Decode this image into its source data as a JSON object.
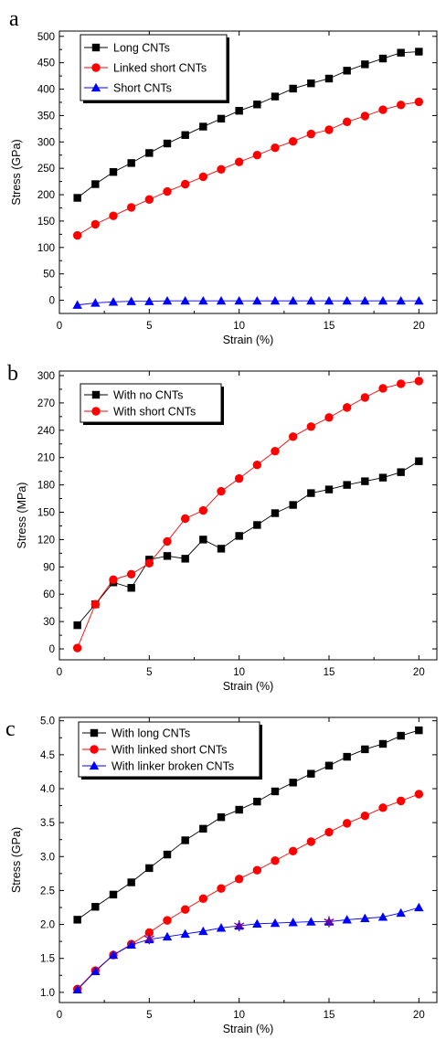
{
  "chart_data": [
    {
      "panel": "a",
      "type": "line",
      "xlabel": "Strain (%)",
      "ylabel": "Stress (GPa)",
      "xlim": [
        0,
        21
      ],
      "ylim": [
        -25,
        510
      ],
      "xticks": [
        0,
        5,
        10,
        15,
        20
      ],
      "yticks": [
        0,
        50,
        100,
        150,
        200,
        250,
        300,
        350,
        400,
        450,
        500
      ],
      "legend_position": "top-left",
      "x": [
        1,
        2,
        3,
        4,
        5,
        6,
        7,
        8,
        9,
        10,
        11,
        12,
        13,
        14,
        15,
        16,
        17,
        18,
        19,
        20
      ],
      "series": [
        {
          "name": "Long CNTs",
          "color": "#000000",
          "marker": "square",
          "values": [
            194,
            220,
            243,
            260,
            279,
            297,
            313,
            329,
            344,
            359,
            371,
            386,
            401,
            411,
            420,
            435,
            447,
            458,
            469,
            471
          ]
        },
        {
          "name": "Linked short CNTs",
          "color": "#ff0000",
          "marker": "circle",
          "values": [
            123,
            144,
            160,
            176,
            191,
            206,
            220,
            234,
            248,
            262,
            275,
            289,
            301,
            315,
            323,
            338,
            349,
            361,
            370,
            376
          ]
        },
        {
          "name": "Short CNTs",
          "color": "#0000ff",
          "marker": "triangle",
          "values": [
            -9,
            -5,
            -3,
            -2,
            -2,
            -1,
            -1,
            -1,
            -1,
            -1,
            -1,
            -1,
            -1,
            -1,
            -1,
            -1,
            -1,
            -1,
            -1,
            -1
          ]
        }
      ]
    },
    {
      "panel": "b",
      "type": "line",
      "xlabel": "Strain (%)",
      "ylabel": "Stress (MPa)",
      "xlim": [
        0,
        21
      ],
      "ylim": [
        -12,
        305
      ],
      "xticks": [
        0,
        5,
        10,
        15,
        20
      ],
      "yticks": [
        0,
        30,
        60,
        90,
        120,
        150,
        180,
        210,
        240,
        270,
        300
      ],
      "legend_position": "top-left",
      "x": [
        1,
        2,
        3,
        4,
        5,
        6,
        7,
        8,
        9,
        10,
        11,
        12,
        13,
        14,
        15,
        16,
        17,
        18,
        19,
        20
      ],
      "series": [
        {
          "name": "With no CNTs",
          "color": "#000000",
          "marker": "square",
          "values": [
            26,
            49,
            73,
            67,
            98,
            102,
            99,
            120,
            110,
            124,
            136,
            149,
            158,
            171,
            175,
            180,
            184,
            188,
            194,
            206
          ]
        },
        {
          "name": "With short CNTs",
          "color": "#ff0000",
          "marker": "circle",
          "values": [
            1,
            49,
            76,
            82,
            94,
            118,
            143,
            152,
            173,
            187,
            202,
            217,
            233,
            244,
            254,
            265,
            276,
            286,
            291,
            294
          ]
        }
      ]
    },
    {
      "panel": "c",
      "type": "line",
      "xlabel": "Strain (%)",
      "ylabel": "Stress (GPa)",
      "xlim": [
        0,
        21
      ],
      "ylim": [
        0.85,
        5.05
      ],
      "xticks": [
        0,
        5,
        10,
        15,
        20
      ],
      "yticks": [
        1.0,
        1.5,
        2.0,
        2.5,
        3.0,
        3.5,
        4.0,
        4.5,
        5.0
      ],
      "legend_position": "top-left",
      "x": [
        1,
        2,
        3,
        4,
        5,
        6,
        7,
        8,
        9,
        10,
        11,
        12,
        13,
        14,
        15,
        16,
        17,
        18,
        19,
        20
      ],
      "series": [
        {
          "name": "With long CNTs",
          "color": "#000000",
          "marker": "square",
          "values": [
            2.07,
            2.26,
            2.44,
            2.62,
            2.83,
            3.03,
            3.24,
            3.41,
            3.58,
            3.69,
            3.81,
            3.96,
            4.09,
            4.22,
            4.34,
            4.47,
            4.58,
            4.66,
            4.78,
            4.86
          ]
        },
        {
          "name": "With linked short CNTs",
          "color": "#ff0000",
          "marker": "circle",
          "values": [
            1.05,
            1.32,
            1.55,
            1.71,
            1.88,
            2.06,
            2.22,
            2.38,
            2.53,
            2.67,
            2.8,
            2.94,
            3.08,
            3.22,
            3.36,
            3.49,
            3.6,
            3.72,
            3.82,
            3.92
          ]
        },
        {
          "name": "With linker broken CNTs",
          "color": "#0000ff",
          "marker": "triangle",
          "values": [
            1.04,
            1.31,
            1.55,
            1.7,
            1.78,
            1.82,
            1.86,
            1.9,
            1.95,
            1.98,
            2.01,
            2.02,
            2.03,
            2.04,
            2.04,
            2.07,
            2.09,
            2.11,
            2.17,
            2.25
          ]
        }
      ],
      "annotations": [
        {
          "marker": "star",
          "color": "#800080",
          "x": [
            5,
            10,
            15
          ],
          "values": [
            1.79,
            1.98,
            2.04
          ]
        }
      ]
    }
  ]
}
